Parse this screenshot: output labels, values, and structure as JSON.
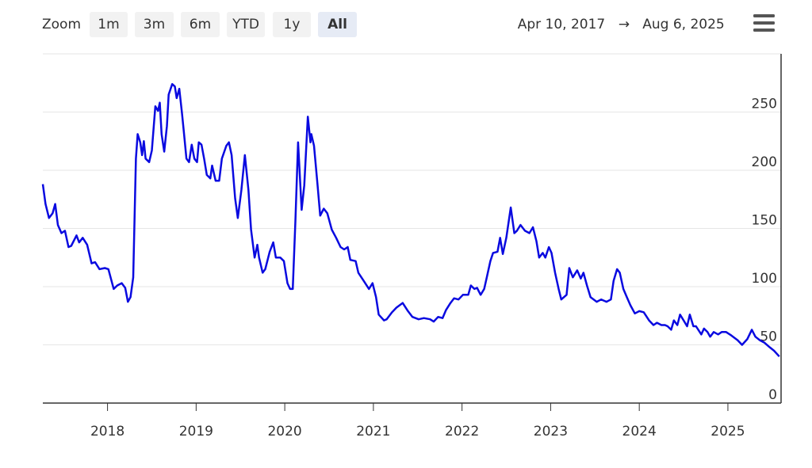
{
  "chart_data": {
    "type": "line",
    "range_selector": {
      "label": "Zoom",
      "buttons": [
        "1m",
        "3m",
        "6m",
        "YTD",
        "1y",
        "All"
      ],
      "selected": "All"
    },
    "date_range": {
      "from": "Apr 10, 2017",
      "arrow": "→",
      "to": "Aug 6, 2025"
    },
    "color": "#0a0ae0",
    "grid": true,
    "xlim": [
      2017.27,
      2025.6
    ],
    "xticks": [
      2018,
      2019,
      2020,
      2021,
      2022,
      2023,
      2024,
      2025
    ],
    "ylim": [
      0,
      300
    ],
    "yticks": [
      0,
      50,
      100,
      150,
      200,
      250
    ],
    "x": [
      2017.27,
      2017.3,
      2017.34,
      2017.38,
      2017.41,
      2017.44,
      2017.48,
      2017.52,
      2017.56,
      2017.59,
      2017.65,
      2017.68,
      2017.72,
      2017.77,
      2017.82,
      2017.86,
      2017.91,
      2017.97,
      2018.01,
      2018.07,
      2018.11,
      2018.16,
      2018.2,
      2018.23,
      2018.26,
      2018.29,
      2018.32,
      2018.34,
      2018.37,
      2018.39,
      2018.41,
      2018.43,
      2018.47,
      2018.5,
      2018.54,
      2018.57,
      2018.59,
      2018.61,
      2018.64,
      2018.67,
      2018.69,
      2018.73,
      2018.76,
      2018.78,
      2018.81,
      2018.84,
      2018.86,
      2018.89,
      2018.92,
      2018.95,
      2018.98,
      2019.01,
      2019.03,
      2019.06,
      2019.09,
      2019.12,
      2019.16,
      2019.18,
      2019.22,
      2019.26,
      2019.29,
      2019.34,
      2019.37,
      2019.4,
      2019.44,
      2019.47,
      2019.51,
      2019.55,
      2019.59,
      2019.62,
      2019.66,
      2019.69,
      2019.71,
      2019.75,
      2019.78,
      2019.83,
      2019.87,
      2019.9,
      2019.95,
      2019.99,
      2020.03,
      2020.06,
      2020.09,
      2020.12,
      2020.15,
      2020.19,
      2020.22,
      2020.26,
      2020.29,
      2020.3,
      2020.33,
      2020.37,
      2020.4,
      2020.44,
      2020.48,
      2020.53,
      2020.58,
      2020.63,
      2020.67,
      2020.71,
      2020.74,
      2020.8,
      2020.83,
      2020.89,
      2020.95,
      2020.99,
      2021.03,
      2021.06,
      2021.12,
      2021.15,
      2021.21,
      2021.26,
      2021.33,
      2021.39,
      2021.44,
      2021.51,
      2021.57,
      2021.64,
      2021.68,
      2021.73,
      2021.78,
      2021.82,
      2021.87,
      2021.91,
      2021.96,
      2022.01,
      2022.07,
      2022.1,
      2022.14,
      2022.17,
      2022.21,
      2022.25,
      2022.28,
      2022.32,
      2022.35,
      2022.4,
      2022.43,
      2022.46,
      2022.5,
      2022.55,
      2022.59,
      2022.62,
      2022.66,
      2022.71,
      2022.76,
      2022.8,
      2022.84,
      2022.87,
      2022.91,
      2022.94,
      2022.98,
      2023.01,
      2023.05,
      2023.09,
      2023.12,
      2023.18,
      2023.21,
      2023.25,
      2023.3,
      2023.34,
      2023.37,
      2023.41,
      2023.45,
      2023.52,
      2023.57,
      2023.63,
      2023.68,
      2023.71,
      2023.75,
      2023.78,
      2023.82,
      2023.86,
      2023.9,
      2023.95,
      2024.0,
      2024.05,
      2024.11,
      2024.16,
      2024.2,
      2024.25,
      2024.29,
      2024.32,
      2024.36,
      2024.39,
      2024.43,
      2024.46,
      2024.5,
      2024.54,
      2024.57,
      2024.61,
      2024.64,
      2024.7,
      2024.73,
      2024.77,
      2024.8,
      2024.84,
      2024.89,
      2024.93,
      2024.98,
      2025.04,
      2025.11,
      2025.16,
      2025.22,
      2025.27,
      2025.31,
      2025.36,
      2025.41,
      2025.47,
      2025.52,
      2025.58
    ],
    "values": [
      188,
      171,
      159,
      163,
      171,
      153,
      146,
      148,
      134,
      135,
      144,
      138,
      142,
      136,
      120,
      121,
      115,
      116,
      115,
      98,
      101,
      103,
      99,
      87,
      91,
      108,
      210,
      231,
      224,
      213,
      225,
      210,
      207,
      217,
      255,
      251,
      258,
      231,
      216,
      238,
      265,
      274,
      272,
      262,
      270,
      249,
      234,
      210,
      207,
      222,
      210,
      207,
      224,
      222,
      210,
      196,
      193,
      204,
      191,
      191,
      210,
      221,
      224,
      213,
      176,
      159,
      183,
      213,
      183,
      149,
      125,
      136,
      125,
      112,
      115,
      130,
      138,
      125,
      125,
      122,
      103,
      98,
      98,
      156,
      224,
      166,
      187,
      246,
      224,
      231,
      221,
      187,
      161,
      167,
      163,
      149,
      142,
      134,
      132,
      134,
      123,
      122,
      112,
      105,
      98,
      103,
      91,
      76,
      71,
      72,
      78,
      82,
      86,
      79,
      74,
      72,
      73,
      72,
      70,
      74,
      73,
      80,
      86,
      90,
      89,
      93,
      93,
      101,
      98,
      99,
      93,
      98,
      108,
      122,
      129,
      130,
      142,
      128,
      142,
      168,
      146,
      148,
      153,
      148,
      146,
      151,
      139,
      125,
      129,
      125,
      134,
      129,
      112,
      98,
      89,
      93,
      116,
      108,
      114,
      107,
      112,
      101,
      91,
      87,
      89,
      87,
      89,
      105,
      115,
      112,
      98,
      91,
      84,
      77,
      79,
      78,
      71,
      67,
      69,
      67,
      67,
      66,
      63,
      71,
      67,
      76,
      71,
      66,
      76,
      66,
      66,
      59,
      64,
      61,
      57,
      61,
      59,
      61,
      61,
      58,
      54,
      50,
      55,
      63,
      57,
      54,
      52,
      48,
      45,
      40
    ]
  }
}
